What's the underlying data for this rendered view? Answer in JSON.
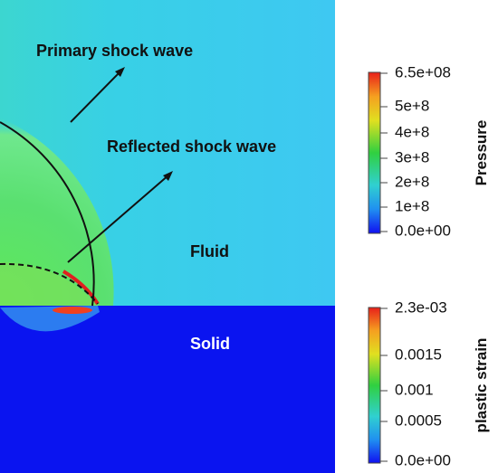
{
  "annotations": {
    "primary": "Primary shock wave",
    "reflected": "Reflected shock wave",
    "fluid": "Fluid",
    "solid": "Solid"
  },
  "pressure_bar": {
    "title": "Pressure",
    "ticks": [
      "6.5e+08",
      "5e+8",
      "4e+8",
      "3e+8",
      "2e+8",
      "1e+8",
      "0.0e+00"
    ]
  },
  "strain_bar": {
    "title": "plastic strain",
    "ticks": [
      "2.3e-03",
      "0.0015",
      "0.001",
      "0.0005",
      "0.0e+00"
    ]
  }
}
